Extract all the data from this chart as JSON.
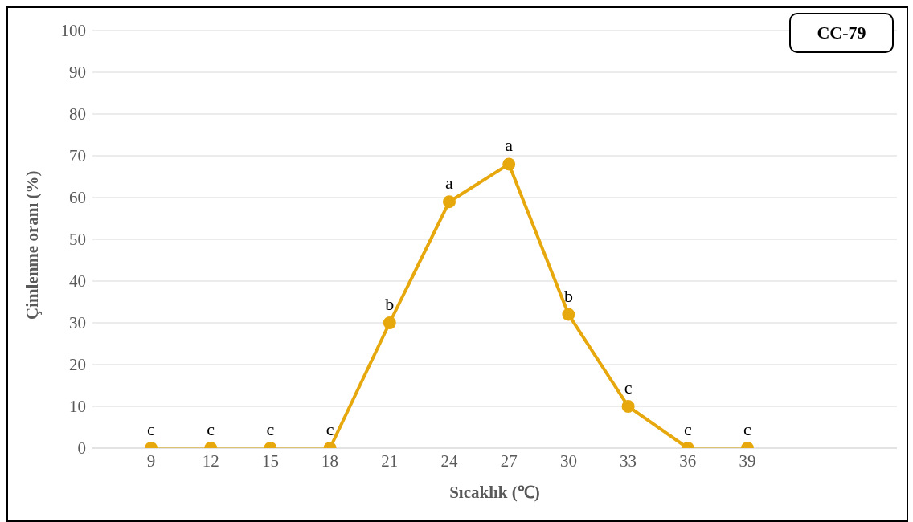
{
  "chart_data": {
    "type": "line",
    "xlabel": "Sıcaklık (℃)",
    "ylabel": "Çimlenme oranı (%)",
    "categories": [
      "9",
      "12",
      "15",
      "18",
      "21",
      "24",
      "27",
      "30",
      "33",
      "36",
      "39"
    ],
    "series": [
      {
        "color": "#e6a80c",
        "values": [
          0,
          0,
          0,
          0,
          30,
          59,
          68,
          32,
          10,
          0,
          0
        ]
      }
    ],
    "ylim": [
      0,
      100
    ],
    "yticks": [
      0,
      10,
      20,
      30,
      40,
      50,
      60,
      70,
      80,
      90,
      100
    ],
    "grid": "y",
    "legend": false,
    "marker": "circle",
    "line_style": "solid",
    "annotations": [
      "CC-79",
      {
        "text": "c",
        "x": "9",
        "y": 0
      },
      {
        "text": "c",
        "x": "12",
        "y": 0
      },
      {
        "text": "c",
        "x": "15",
        "y": 0
      },
      {
        "text": "c",
        "x": "18",
        "y": 0
      },
      {
        "text": "b",
        "x": "21",
        "y": 30
      },
      {
        "text": "a",
        "x": "24",
        "y": 59
      },
      {
        "text": "a",
        "x": "27",
        "y": 68
      },
      {
        "text": "b",
        "x": "30",
        "y": 32
      },
      {
        "text": "c",
        "x": "33",
        "y": 10
      },
      {
        "text": "c",
        "x": "36",
        "y": 0
      },
      {
        "text": "c",
        "x": "39",
        "y": 0
      }
    ]
  }
}
